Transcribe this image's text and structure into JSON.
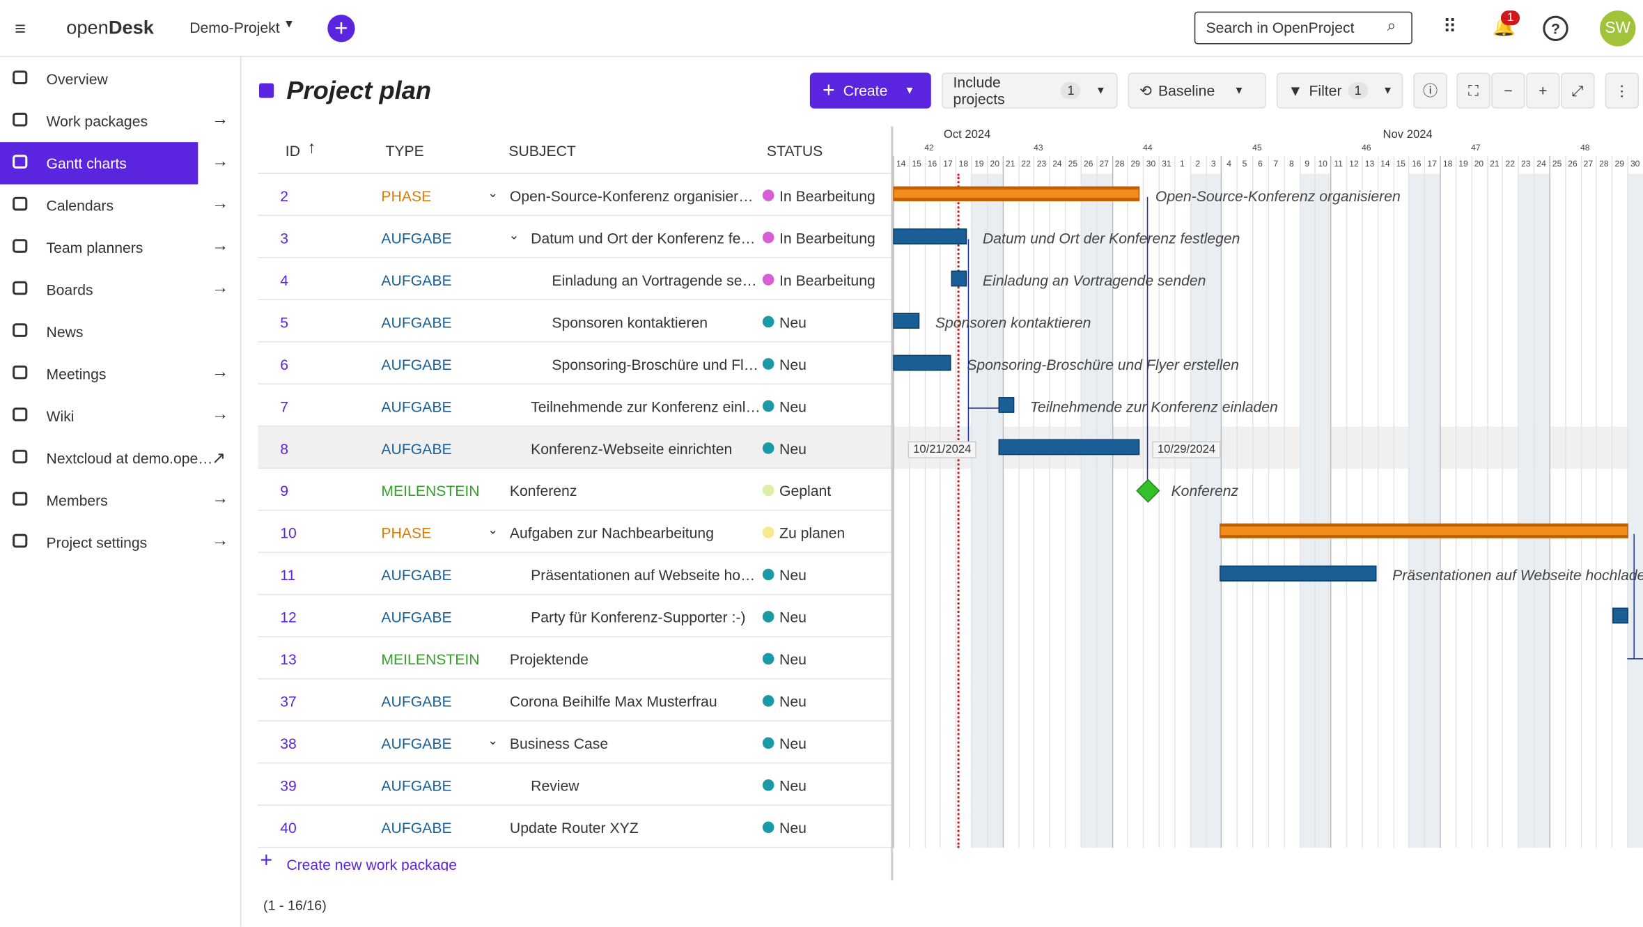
{
  "header": {
    "brand_a": "open",
    "brand_b": "Desk",
    "project": "Demo-Projekt",
    "search": "Search in OpenProject",
    "notifications": "1",
    "avatar": "SW"
  },
  "sidebar": [
    "Overview",
    "Work packages",
    "Gantt charts",
    "Calendars",
    "Team planners",
    "Boards",
    "News",
    "Meetings",
    "Wiki",
    "Nextcloud at demo.ope…",
    "Members",
    "Project settings"
  ],
  "toolbar": {
    "title": "Project plan",
    "create": "Create",
    "include_projects": "Include projects",
    "include_count": "1",
    "baseline": "Baseline",
    "filter": "Filter",
    "filter_count": "1"
  },
  "table": {
    "columns": [
      "ID",
      "TYPE",
      "SUBJECT",
      "STATUS"
    ],
    "rows": [
      {
        "id": "2",
        "type": "PHASE",
        "type_color": "#e07a00",
        "subject": "Open-Source-Konferenz organisier…",
        "status": "In Bearbeitung",
        "status_color": "#d65fd6"
      },
      {
        "id": "3",
        "type": "AUFGABE",
        "type_color": "#1a5e96",
        "subject": "Datum und Ort der Konferenz fe…",
        "status": "In Bearbeitung",
        "status_color": "#d65fd6"
      },
      {
        "id": "4",
        "type": "AUFGABE",
        "type_color": "#1a5e96",
        "subject": "Einladung an Vortragende se…",
        "status": "In Bearbeitung",
        "status_color": "#d65fd6"
      },
      {
        "id": "5",
        "type": "AUFGABE",
        "type_color": "#1a5e96",
        "subject": "Sponsoren kontaktieren",
        "status": "Neu",
        "status_color": "#1b9aa6"
      },
      {
        "id": "6",
        "type": "AUFGABE",
        "type_color": "#1a5e96",
        "subject": "Sponsoring-Broschüre und Fl…",
        "status": "Neu",
        "status_color": "#1b9aa6"
      },
      {
        "id": "7",
        "type": "AUFGABE",
        "type_color": "#1a5e96",
        "subject": "Teilnehmende zur Konferenz einl…",
        "status": "Neu",
        "status_color": "#1b9aa6"
      },
      {
        "id": "8",
        "type": "AUFGABE",
        "type_color": "#1a5e96",
        "subject": "Konferenz-Webseite einrichten",
        "status": "Neu",
        "status_color": "#1b9aa6"
      },
      {
        "id": "9",
        "type": "MEILENSTEIN",
        "type_color": "#35a02b",
        "subject": "Konferenz",
        "status": "Geplant",
        "status_color": "#d8f0a8"
      },
      {
        "id": "10",
        "type": "PHASE",
        "type_color": "#e07a00",
        "subject": "Aufgaben zur Nachbearbeitung",
        "status": "Zu planen",
        "status_color": "#f7e98e"
      },
      {
        "id": "11",
        "type": "AUFGABE",
        "type_color": "#1a5e96",
        "subject": "Präsentationen auf Webseite ho…",
        "status": "Neu",
        "status_color": "#1b9aa6"
      },
      {
        "id": "12",
        "type": "AUFGABE",
        "type_color": "#1a5e96",
        "subject": "Party für Konferenz-Supporter :-)",
        "status": "Neu",
        "status_color": "#1b9aa6"
      },
      {
        "id": "13",
        "type": "MEILENSTEIN",
        "type_color": "#35a02b",
        "subject": "Projektende",
        "status": "Neu",
        "status_color": "#1b9aa6"
      },
      {
        "id": "37",
        "type": "AUFGABE",
        "type_color": "#1a5e96",
        "subject": "Corona Beihilfe Max Musterfrau",
        "status": "Neu",
        "status_color": "#1b9aa6"
      },
      {
        "id": "38",
        "type": "AUFGABE",
        "type_color": "#1a5e96",
        "subject": "Business Case",
        "status": "Neu",
        "status_color": "#1b9aa6"
      },
      {
        "id": "39",
        "type": "AUFGABE",
        "type_color": "#1a5e96",
        "subject": "Review",
        "status": "Neu",
        "status_color": "#1b9aa6"
      },
      {
        "id": "40",
        "type": "AUFGABE",
        "type_color": "#1a5e96",
        "subject": "Update Router XYZ",
        "status": "Neu",
        "status_color": "#1b9aa6"
      }
    ]
  },
  "gantt": {
    "months": [
      "Oct 2024",
      "Nov 2024"
    ],
    "weeks": [
      "42",
      "43",
      "44",
      "45",
      "46",
      "47",
      "48"
    ],
    "days": [
      14,
      15,
      16,
      17,
      18,
      19,
      20,
      21,
      22,
      23,
      24,
      25,
      26,
      27,
      28,
      29,
      30,
      31,
      1,
      2,
      3,
      4,
      5,
      6,
      7,
      8,
      9,
      10,
      11,
      12,
      13,
      14,
      15,
      16,
      17,
      18,
      19,
      20,
      21,
      22,
      23,
      24,
      25,
      26,
      27,
      28,
      29,
      30
    ],
    "labels": [
      "Open-Source-Konferenz organisieren",
      "Datum und Ort der Konferenz festlegen",
      "Einladung an Vortragende senden",
      "Sponsoren kontaktieren",
      "Sponsoring-Broschüre und Flyer erstellen",
      "Teilnehmende zur Konferenz einladen",
      null,
      "Konferenz",
      null,
      "Präsentationen auf Webseite hochladen"
    ],
    "start_date": "10/21/2024",
    "end_date": "10/29/2024"
  },
  "footer": {
    "create_new": "Create new work package",
    "pagination": "(1 - 16/16)"
  }
}
